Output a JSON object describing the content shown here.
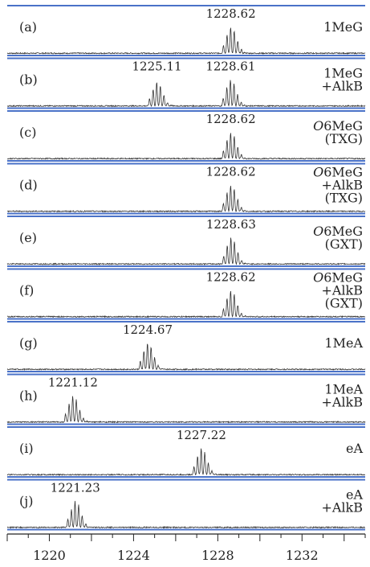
{
  "chart_data": {
    "type": "line",
    "xlim": [
      1218,
      1235
    ],
    "x_ticks": [
      1220,
      1224,
      1228,
      1232
    ],
    "x_tick_labels": [
      "1220",
      "1224",
      "1228",
      "1232"
    ],
    "panel_line_color": "#4a72c8",
    "trace_color": "#333333",
    "panels": [
      {
        "id": "(a)",
        "label": [
          "1MeG"
        ],
        "peaks": [
          {
            "x": 1228.62,
            "label": "1228.62",
            "rel_height": 1.0
          }
        ]
      },
      {
        "id": "(b)",
        "label": [
          "1MeG",
          "+AlkB"
        ],
        "peaks": [
          {
            "x": 1225.11,
            "label": "1225.11",
            "rel_height": 0.9
          },
          {
            "x": 1228.61,
            "label": "1228.61",
            "rel_height": 1.0
          }
        ]
      },
      {
        "id": "(c)",
        "label": [
          "O6MeG",
          "(TXG)"
        ],
        "peaks": [
          {
            "x": 1228.62,
            "label": "1228.62",
            "rel_height": 1.0
          }
        ]
      },
      {
        "id": "(d)",
        "label": [
          "O6MeG",
          "+AlkB",
          "(TXG)"
        ],
        "peaks": [
          {
            "x": 1228.62,
            "label": "1228.62",
            "rel_height": 1.0
          }
        ]
      },
      {
        "id": "(e)",
        "label": [
          "O6MeG",
          "(GXT)"
        ],
        "peaks": [
          {
            "x": 1228.63,
            "label": "1228.63",
            "rel_height": 1.0
          }
        ]
      },
      {
        "id": "(f)",
        "label": [
          "O6MeG",
          "+AlkB",
          "(GXT)"
        ],
        "peaks": [
          {
            "x": 1228.62,
            "label": "1228.62",
            "rel_height": 1.0
          }
        ]
      },
      {
        "id": "(g)",
        "label": [
          "1MeA"
        ],
        "peaks": [
          {
            "x": 1224.67,
            "label": "1224.67",
            "rel_height": 1.0
          }
        ]
      },
      {
        "id": "(h)",
        "label": [
          "1MeA",
          "+AlkB"
        ],
        "peaks": [
          {
            "x": 1221.12,
            "label": "1221.12",
            "rel_height": 1.0
          }
        ]
      },
      {
        "id": "(i)",
        "label": [
          "eA"
        ],
        "peaks": [
          {
            "x": 1227.22,
            "label": "1227.22",
            "rel_height": 1.0
          }
        ]
      },
      {
        "id": "(j)",
        "label": [
          "eA",
          "+AlkB"
        ],
        "peaks": [
          {
            "x": 1221.23,
            "label": "1221.23",
            "rel_height": 1.0
          }
        ]
      }
    ]
  }
}
